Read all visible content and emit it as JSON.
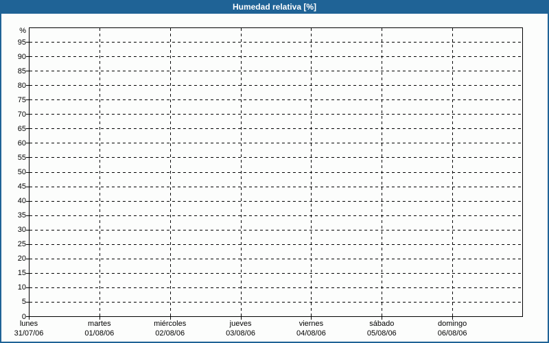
{
  "header": {
    "title": "Humedad relativa [%]"
  },
  "colors": {
    "header_bg": "#1F6396",
    "header_text": "#FFFFFF",
    "frame_border": "#1F6396",
    "background": "#FCFDFC",
    "grid": "#000000",
    "axis": "#000000",
    "label_text": "#000000"
  },
  "chart_data": {
    "type": "line",
    "title": "Humedad relativa [%]",
    "ylabel": "%",
    "ylim": [
      0,
      100
    ],
    "ytick_interval": 5,
    "ytick_labels": [
      "0",
      "5",
      "10",
      "15",
      "20",
      "25",
      "30",
      "35",
      "40",
      "45",
      "50",
      "55",
      "60",
      "65",
      "70",
      "75",
      "80",
      "85",
      "90",
      "95"
    ],
    "x_categories": [
      {
        "day": "lunes",
        "date": "31/07/06"
      },
      {
        "day": "martes",
        "date": "01/08/06"
      },
      {
        "day": "miércoles",
        "date": "02/08/06"
      },
      {
        "day": "jueves",
        "date": "03/08/06"
      },
      {
        "day": "viernes",
        "date": "04/08/06"
      },
      {
        "day": "sábado",
        "date": "05/08/06"
      },
      {
        "day": "domingo",
        "date": "06/08/06"
      }
    ],
    "series": [],
    "grid": "dashed",
    "legend": "none"
  }
}
